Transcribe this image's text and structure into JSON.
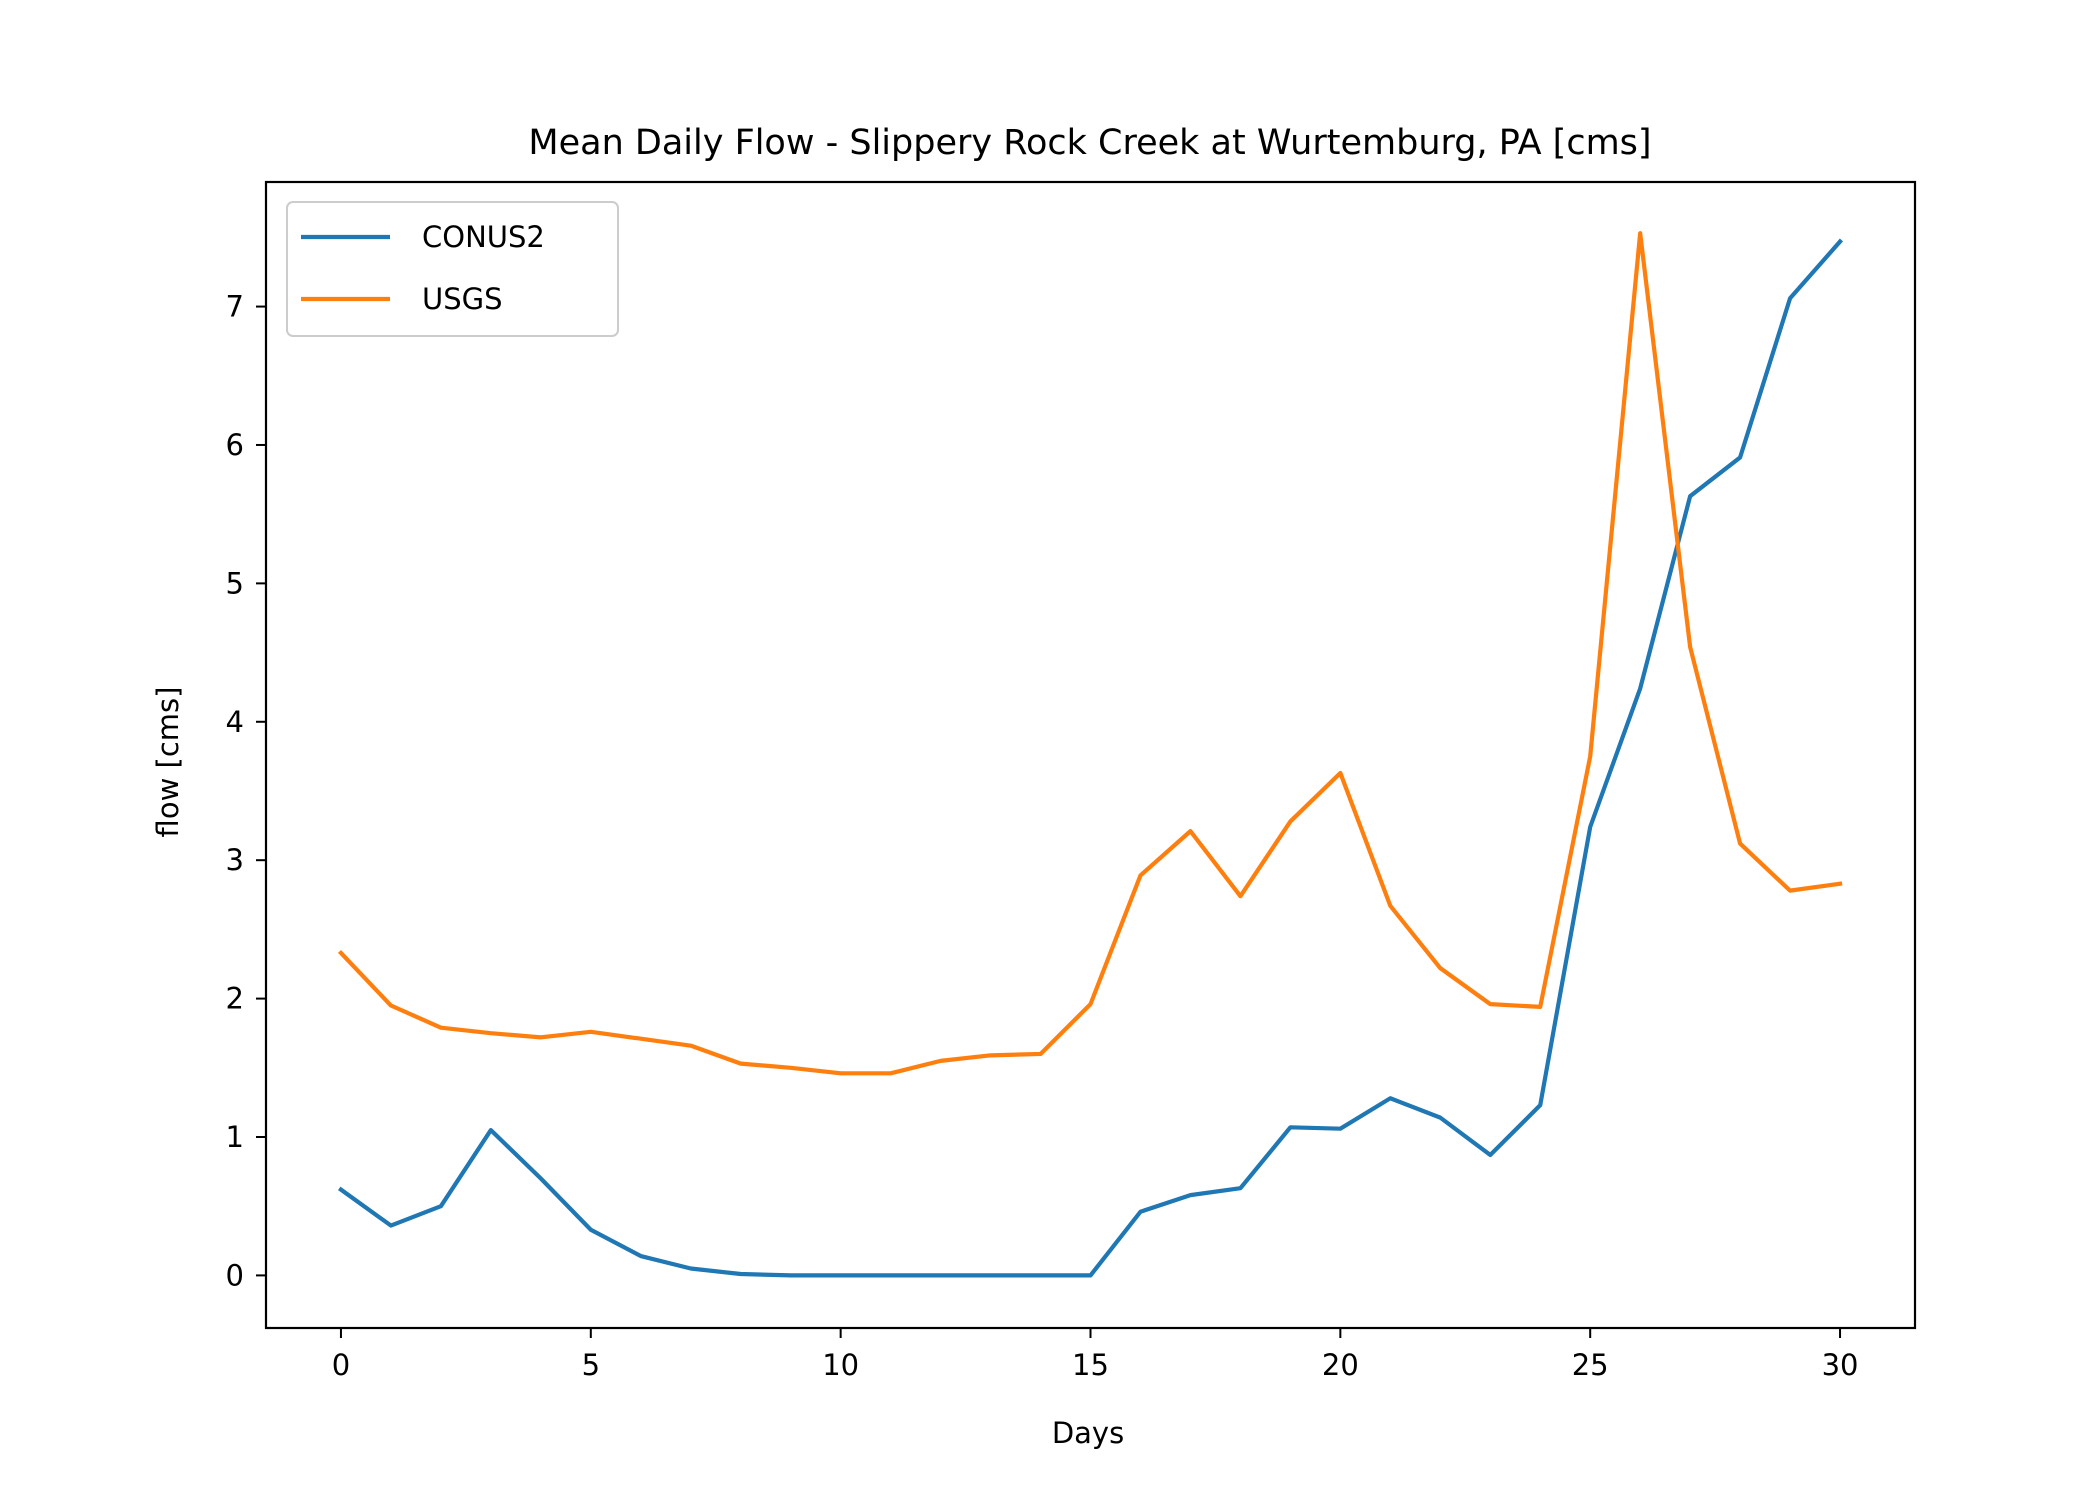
{
  "chart_data": {
    "type": "line",
    "title": "Mean Daily Flow - Slippery Rock Creek at Wurtemburg, PA [cms]",
    "xlabel": "Days",
    "ylabel": "flow [cms]",
    "xlim": [
      -1.5,
      31.5
    ],
    "ylim": [
      -0.38,
      7.9
    ],
    "xticks": [
      0,
      5,
      10,
      15,
      20,
      25,
      30
    ],
    "yticks": [
      0,
      1,
      2,
      3,
      4,
      5,
      6,
      7
    ],
    "grid": false,
    "legend_position": "upper-left",
    "x": [
      0,
      1,
      2,
      3,
      4,
      5,
      6,
      7,
      8,
      9,
      10,
      11,
      12,
      13,
      14,
      15,
      16,
      17,
      18,
      19,
      20,
      21,
      22,
      23,
      24,
      25,
      26,
      27,
      28,
      29,
      30
    ],
    "series": [
      {
        "name": "CONUS2",
        "color": "#1f77b4",
        "values": [
          0.62,
          0.36,
          0.5,
          1.05,
          0.7,
          0.33,
          0.14,
          0.05,
          0.01,
          0.0,
          0.0,
          0.0,
          0.0,
          0.0,
          0.0,
          0.0,
          0.46,
          0.58,
          0.63,
          1.07,
          1.06,
          1.28,
          1.14,
          0.87,
          1.23,
          3.24,
          4.24,
          5.63,
          5.91,
          7.06,
          7.47
        ]
      },
      {
        "name": "USGS",
        "color": "#ff7f0e",
        "values": [
          2.33,
          1.95,
          1.79,
          1.75,
          1.72,
          1.76,
          1.71,
          1.66,
          1.53,
          1.5,
          1.46,
          1.46,
          1.55,
          1.59,
          1.6,
          1.96,
          2.89,
          3.21,
          2.74,
          3.28,
          3.63,
          2.67,
          2.22,
          1.96,
          1.94,
          3.75,
          7.53,
          4.54,
          3.12,
          2.78,
          2.83
        ]
      }
    ]
  }
}
